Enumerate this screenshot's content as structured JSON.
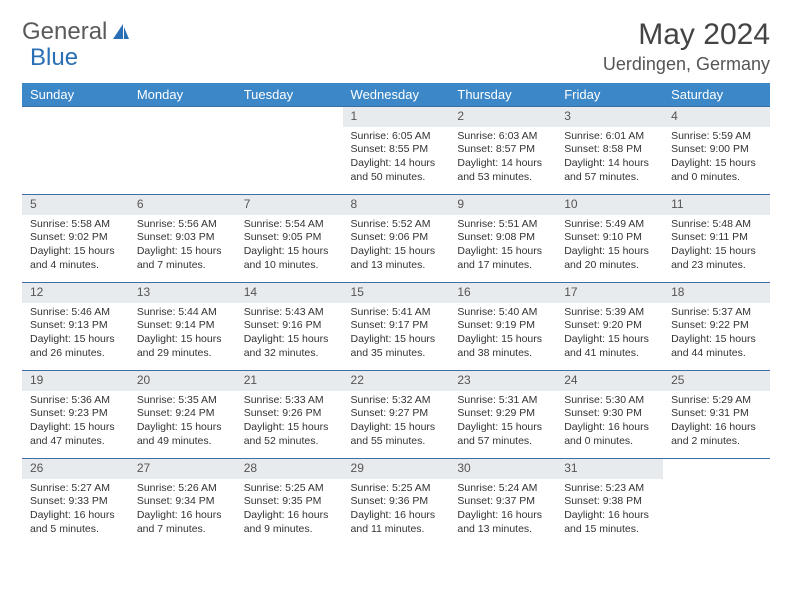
{
  "logo": {
    "text1": "General",
    "text2": "Blue"
  },
  "title": "May 2024",
  "location": "Uerdingen, Germany",
  "dayHeaders": [
    "Sunday",
    "Monday",
    "Tuesday",
    "Wednesday",
    "Thursday",
    "Friday",
    "Saturday"
  ],
  "colors": {
    "headerBg": "#3b87c8",
    "headerText": "#ffffff",
    "dayNumBg": "#e8ebee",
    "cellBorder": "#3b6fa5",
    "logoBlue": "#2a6fb5",
    "textColor": "#333333",
    "background": "#ffffff"
  },
  "typography": {
    "titleFontSize": 30,
    "locationFontSize": 18,
    "headerFontSize": 13,
    "cellFontSize": 10.5,
    "dayNumFontSize": 12,
    "fontFamily": "Arial"
  },
  "layout": {
    "columns": 7,
    "rows": 5,
    "firstDayOffset": 3,
    "cellHeight": 88
  },
  "days": [
    {
      "n": "1",
      "sunrise": "6:05 AM",
      "sunset": "8:55 PM",
      "dlh": "14",
      "dlm": "50"
    },
    {
      "n": "2",
      "sunrise": "6:03 AM",
      "sunset": "8:57 PM",
      "dlh": "14",
      "dlm": "53"
    },
    {
      "n": "3",
      "sunrise": "6:01 AM",
      "sunset": "8:58 PM",
      "dlh": "14",
      "dlm": "57"
    },
    {
      "n": "4",
      "sunrise": "5:59 AM",
      "sunset": "9:00 PM",
      "dlh": "15",
      "dlm": "0"
    },
    {
      "n": "5",
      "sunrise": "5:58 AM",
      "sunset": "9:02 PM",
      "dlh": "15",
      "dlm": "4"
    },
    {
      "n": "6",
      "sunrise": "5:56 AM",
      "sunset": "9:03 PM",
      "dlh": "15",
      "dlm": "7"
    },
    {
      "n": "7",
      "sunrise": "5:54 AM",
      "sunset": "9:05 PM",
      "dlh": "15",
      "dlm": "10"
    },
    {
      "n": "8",
      "sunrise": "5:52 AM",
      "sunset": "9:06 PM",
      "dlh": "15",
      "dlm": "13"
    },
    {
      "n": "9",
      "sunrise": "5:51 AM",
      "sunset": "9:08 PM",
      "dlh": "15",
      "dlm": "17"
    },
    {
      "n": "10",
      "sunrise": "5:49 AM",
      "sunset": "9:10 PM",
      "dlh": "15",
      "dlm": "20"
    },
    {
      "n": "11",
      "sunrise": "5:48 AM",
      "sunset": "9:11 PM",
      "dlh": "15",
      "dlm": "23"
    },
    {
      "n": "12",
      "sunrise": "5:46 AM",
      "sunset": "9:13 PM",
      "dlh": "15",
      "dlm": "26"
    },
    {
      "n": "13",
      "sunrise": "5:44 AM",
      "sunset": "9:14 PM",
      "dlh": "15",
      "dlm": "29"
    },
    {
      "n": "14",
      "sunrise": "5:43 AM",
      "sunset": "9:16 PM",
      "dlh": "15",
      "dlm": "32"
    },
    {
      "n": "15",
      "sunrise": "5:41 AM",
      "sunset": "9:17 PM",
      "dlh": "15",
      "dlm": "35"
    },
    {
      "n": "16",
      "sunrise": "5:40 AM",
      "sunset": "9:19 PM",
      "dlh": "15",
      "dlm": "38"
    },
    {
      "n": "17",
      "sunrise": "5:39 AM",
      "sunset": "9:20 PM",
      "dlh": "15",
      "dlm": "41"
    },
    {
      "n": "18",
      "sunrise": "5:37 AM",
      "sunset": "9:22 PM",
      "dlh": "15",
      "dlm": "44"
    },
    {
      "n": "19",
      "sunrise": "5:36 AM",
      "sunset": "9:23 PM",
      "dlh": "15",
      "dlm": "47"
    },
    {
      "n": "20",
      "sunrise": "5:35 AM",
      "sunset": "9:24 PM",
      "dlh": "15",
      "dlm": "49"
    },
    {
      "n": "21",
      "sunrise": "5:33 AM",
      "sunset": "9:26 PM",
      "dlh": "15",
      "dlm": "52"
    },
    {
      "n": "22",
      "sunrise": "5:32 AM",
      "sunset": "9:27 PM",
      "dlh": "15",
      "dlm": "55"
    },
    {
      "n": "23",
      "sunrise": "5:31 AM",
      "sunset": "9:29 PM",
      "dlh": "15",
      "dlm": "57"
    },
    {
      "n": "24",
      "sunrise": "5:30 AM",
      "sunset": "9:30 PM",
      "dlh": "16",
      "dlm": "0"
    },
    {
      "n": "25",
      "sunrise": "5:29 AM",
      "sunset": "9:31 PM",
      "dlh": "16",
      "dlm": "2"
    },
    {
      "n": "26",
      "sunrise": "5:27 AM",
      "sunset": "9:33 PM",
      "dlh": "16",
      "dlm": "5"
    },
    {
      "n": "27",
      "sunrise": "5:26 AM",
      "sunset": "9:34 PM",
      "dlh": "16",
      "dlm": "7"
    },
    {
      "n": "28",
      "sunrise": "5:25 AM",
      "sunset": "9:35 PM",
      "dlh": "16",
      "dlm": "9"
    },
    {
      "n": "29",
      "sunrise": "5:25 AM",
      "sunset": "9:36 PM",
      "dlh": "16",
      "dlm": "11"
    },
    {
      "n": "30",
      "sunrise": "5:24 AM",
      "sunset": "9:37 PM",
      "dlh": "16",
      "dlm": "13"
    },
    {
      "n": "31",
      "sunrise": "5:23 AM",
      "sunset": "9:38 PM",
      "dlh": "16",
      "dlm": "15"
    }
  ]
}
